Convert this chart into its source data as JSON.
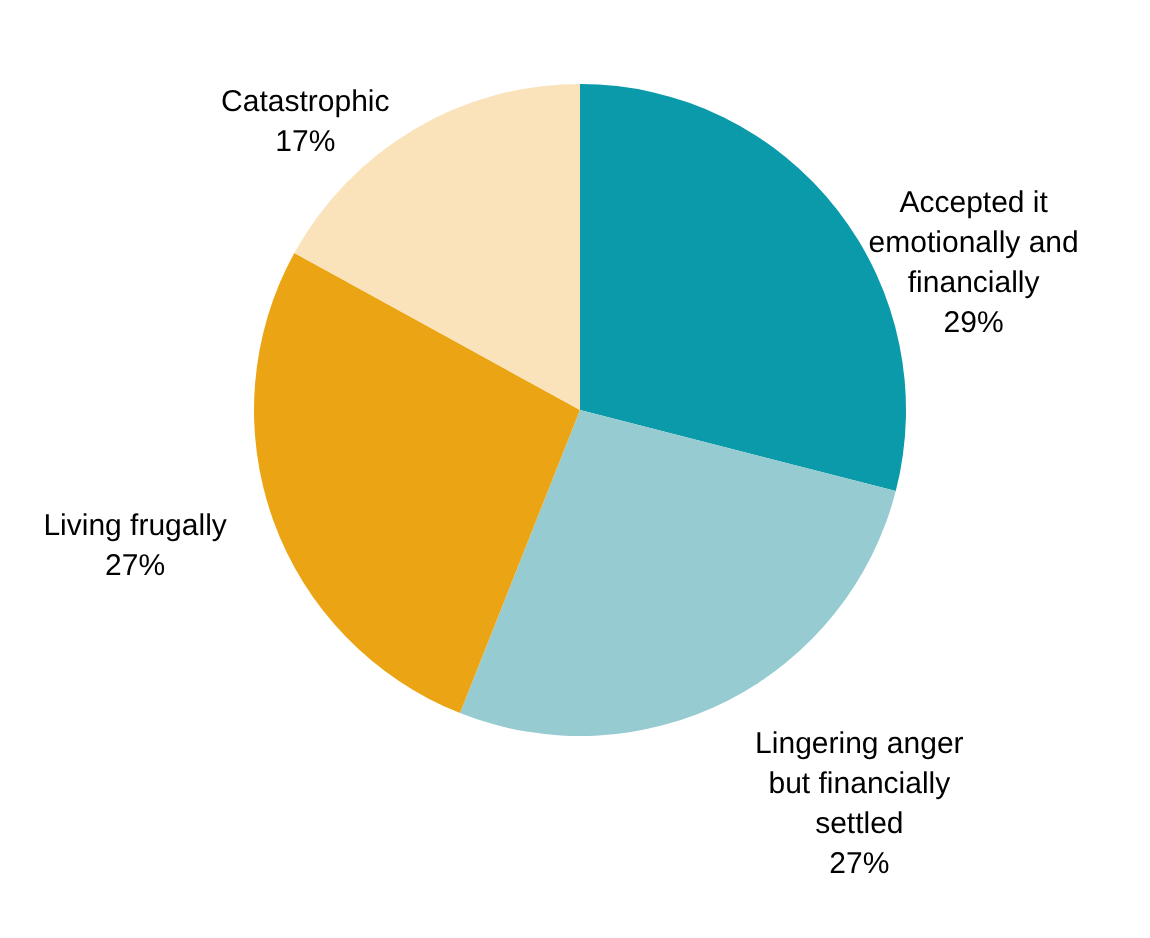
{
  "chart_data": {
    "type": "pie",
    "categories": [
      "Accepted it emotionally and financially",
      "Lingering anger but financially settled",
      "Living frugally",
      "Catastrophic"
    ],
    "values": [
      29,
      27,
      27,
      17
    ],
    "value_labels": [
      "29%",
      "27%",
      "27%",
      "17%"
    ],
    "colors": [
      "#0a9aaa",
      "#96cbd1",
      "#eba414",
      "#fae3bb"
    ]
  }
}
